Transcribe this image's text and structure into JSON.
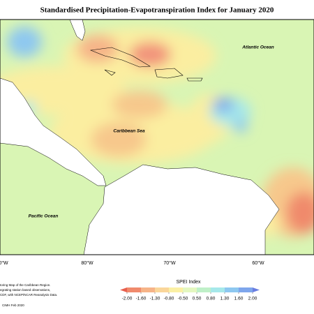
{
  "title": "Standardised Precipitation-Evapotranspiration Index for January 2020",
  "labels": [
    "Atlantic Ocean",
    "Caribbean Sea",
    "Pacific Ocean"
  ],
  "longitude_labels": [
    "0°W",
    "80°W",
    "70°W",
    "60°W"
  ],
  "legend": {
    "title": "SPEI Index",
    "colors": [
      "#e8604e",
      "#f08a6c",
      "#f6b488",
      "#fad69a",
      "#fbf0a4",
      "#e4f7c0",
      "#bff0c8",
      "#a6e8ea",
      "#8ec8f0",
      "#7ea6ec",
      "#6a7ee0"
    ],
    "ticks": [
      {
        "value": -2,
        "label": "-2.00"
      },
      {
        "value": -1.6,
        "label": "-1.60"
      },
      {
        "value": -1.3,
        "label": "-1.30"
      },
      {
        "value": -0.8,
        "label": "-0.80"
      },
      {
        "value": -0.5,
        "label": "-0.50"
      },
      {
        "value": 0.5,
        "label": "0.50"
      },
      {
        "value": 0.8,
        "label": "0.80"
      },
      {
        "value": 1.3,
        "label": "1.30"
      },
      {
        "value": 1.6,
        "label": "1.60"
      },
      {
        "value": 2,
        "label": "2.00"
      }
    ]
  },
  "credits": [
    "toring Map of the Caribbean Region.",
    "egrating station based observations,",
    "CDF, with NCEP/NCAR Reanalysis Data.",
    "CIMH Feb 2020"
  ]
}
